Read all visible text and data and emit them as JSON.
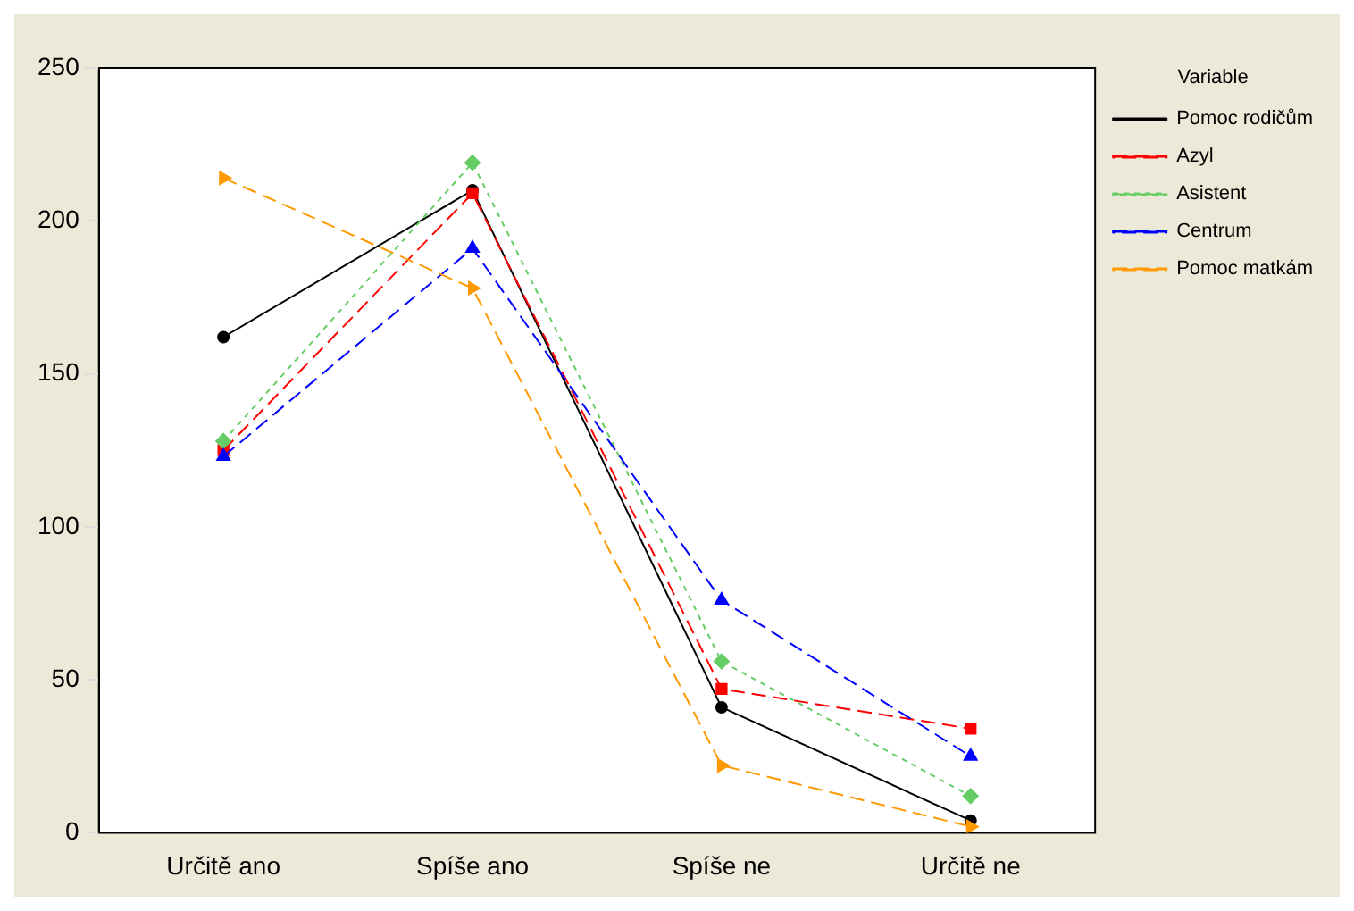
{
  "chart_data": {
    "type": "line",
    "categories": [
      "Určitě ano",
      "Spíše ano",
      "Spíše ne",
      "Určitě ne"
    ],
    "legend_title": "Variable",
    "legend": "right",
    "series": [
      {
        "name": "Pomoc rodičům",
        "color": "#000000",
        "marker": "circle",
        "line_style": "solid",
        "values": [
          162,
          210,
          41,
          4
        ]
      },
      {
        "name": "Azyl",
        "color": "#ff0000",
        "marker": "square",
        "line_style": "dashed",
        "values": [
          125,
          209,
          47,
          34
        ]
      },
      {
        "name": "Asistent",
        "color": "#66cc66",
        "marker": "diamond",
        "line_style": "dotted",
        "values": [
          128,
          219,
          56,
          12
        ]
      },
      {
        "name": "Centrum",
        "color": "#0000ff",
        "marker": "triangle",
        "line_style": "dashed",
        "values": [
          123,
          191,
          76,
          25
        ]
      },
      {
        "name": "Pomoc matkám",
        "color": "#ff9900",
        "marker": "triangle-right",
        "line_style": "dashed",
        "values": [
          214,
          178,
          22,
          2
        ]
      }
    ],
    "ylim": [
      0,
      250
    ],
    "yticks": [
      0,
      50,
      100,
      150,
      200,
      250
    ],
    "grid": false
  }
}
